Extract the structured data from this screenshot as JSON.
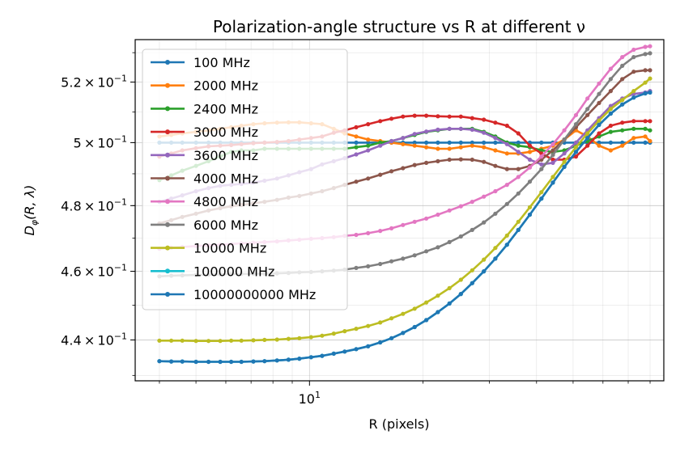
{
  "chart_data": {
    "type": "line",
    "title": "Polarization-angle structure vs R at different ν",
    "xlabel": "R (pixels)",
    "ylabel_main": "D",
    "ylabel_sub": "φ",
    "ylabel_args": "(R, λ)",
    "xscale": "log",
    "yscale": "log",
    "xlim": [
      3.45,
      87
    ],
    "ylim": [
      0.4285,
      0.5345
    ],
    "xtick_major": {
      "value": 10,
      "base": "10",
      "exp": "1"
    },
    "x_minor_ticks": [
      4,
      5,
      6,
      7,
      8,
      9,
      20,
      30,
      40,
      50,
      60,
      70,
      80
    ],
    "yticks": [
      {
        "value": 0.44,
        "mant": "4.4",
        "times": "×",
        "base": "10",
        "exp": "−1"
      },
      {
        "value": 0.46,
        "mant": "4.6",
        "times": "×",
        "base": "10",
        "exp": "−1"
      },
      {
        "value": 0.48,
        "mant": "4.8",
        "times": "×",
        "base": "10",
        "exp": "−1"
      },
      {
        "value": 0.5,
        "mant": "5",
        "times": "×",
        "base": "10",
        "exp": "−1"
      },
      {
        "value": 0.52,
        "mant": "5.2",
        "times": "×",
        "base": "10",
        "exp": "−1"
      }
    ],
    "grid": true,
    "legend_position": "upper-left",
    "x": [
      4.0,
      4.3,
      4.6,
      5.0,
      5.4,
      5.8,
      6.2,
      6.6,
      7.1,
      7.6,
      8.2,
      8.8,
      9.4,
      10.1,
      10.8,
      11.6,
      12.4,
      13.3,
      14.3,
      15.4,
      16.5,
      17.7,
      19.0,
      20.4,
      21.9,
      23.5,
      25.2,
      27.0,
      29.0,
      31.1,
      33.4,
      35.8,
      38.4,
      41.2,
      44.2,
      47.4,
      50.9,
      54.6,
      58.6,
      62.9,
      67.5,
      72.4,
      77.7,
      80.0
    ],
    "series": [
      {
        "name": "100 MHz",
        "color": "#1f77b4",
        "values": [
          0.5,
          0.5,
          0.5,
          0.5,
          0.5,
          0.5,
          0.5,
          0.5,
          0.5,
          0.5,
          0.5,
          0.5,
          0.5,
          0.5,
          0.5,
          0.5,
          0.5,
          0.5,
          0.5,
          0.5,
          0.5,
          0.5,
          0.5,
          0.5,
          0.5,
          0.5,
          0.5,
          0.5,
          0.5,
          0.5,
          0.5,
          0.5,
          0.5,
          0.5,
          0.5,
          0.5,
          0.5,
          0.5,
          0.5,
          0.5,
          0.5,
          0.5,
          0.5,
          0.5
        ]
      },
      {
        "name": "2000 MHz",
        "color": "#ff7f0e",
        "values": [
          0.502,
          0.5025,
          0.503,
          0.5035,
          0.504,
          0.5045,
          0.505,
          0.5055,
          0.506,
          0.5063,
          0.5065,
          0.5066,
          0.5066,
          0.5063,
          0.506,
          0.5045,
          0.503,
          0.502,
          0.501,
          0.5005,
          0.5,
          0.4995,
          0.499,
          0.4985,
          0.498,
          0.498,
          0.4985,
          0.499,
          0.4985,
          0.4975,
          0.4965,
          0.4965,
          0.497,
          0.498,
          0.499,
          0.501,
          0.504,
          0.502,
          0.499,
          0.4975,
          0.499,
          0.5015,
          0.502,
          0.5005
        ]
      },
      {
        "name": "2400 MHz",
        "color": "#2ca02c",
        "values": [
          0.488,
          0.4895,
          0.491,
          0.4925,
          0.494,
          0.4955,
          0.497,
          0.4975,
          0.4975,
          0.498,
          0.498,
          0.498,
          0.498,
          0.498,
          0.498,
          0.498,
          0.498,
          0.4985,
          0.499,
          0.5,
          0.5005,
          0.5015,
          0.5025,
          0.5035,
          0.504,
          0.5045,
          0.5045,
          0.5045,
          0.5035,
          0.502,
          0.5,
          0.499,
          0.4985,
          0.4975,
          0.497,
          0.4975,
          0.499,
          0.5005,
          0.502,
          0.5035,
          0.504,
          0.5045,
          0.5045,
          0.504
        ]
      },
      {
        "name": "3000 MHz",
        "color": "#d62728",
        "values": [
          0.4955,
          0.4965,
          0.4975,
          0.4982,
          0.4988,
          0.499,
          0.4992,
          0.4995,
          0.4998,
          0.5,
          0.5002,
          0.5005,
          0.501,
          0.5015,
          0.502,
          0.5032,
          0.504,
          0.505,
          0.506,
          0.507,
          0.5078,
          0.5085,
          0.5088,
          0.5088,
          0.5086,
          0.5085,
          0.5085,
          0.508,
          0.5075,
          0.5065,
          0.5055,
          0.503,
          0.499,
          0.4965,
          0.4945,
          0.4945,
          0.4955,
          0.499,
          0.503,
          0.5055,
          0.5065,
          0.507,
          0.507,
          0.507
        ]
      },
      {
        "name": "3600 MHz",
        "color": "#9467bd",
        "values": [
          0.4812,
          0.4822,
          0.4832,
          0.4845,
          0.4855,
          0.4862,
          0.4865,
          0.4868,
          0.4872,
          0.4878,
          0.4885,
          0.4895,
          0.4905,
          0.4915,
          0.493,
          0.494,
          0.495,
          0.4962,
          0.4975,
          0.499,
          0.5005,
          0.5015,
          0.5028,
          0.5036,
          0.5042,
          0.5045,
          0.5045,
          0.5042,
          0.5032,
          0.5015,
          0.4995,
          0.497,
          0.4945,
          0.493,
          0.4935,
          0.4965,
          0.5,
          0.504,
          0.508,
          0.512,
          0.5145,
          0.516,
          0.5165,
          0.517
        ]
      },
      {
        "name": "4000 MHz",
        "color": "#8c564b",
        "values": [
          0.4745,
          0.4755,
          0.4765,
          0.4775,
          0.4785,
          0.4792,
          0.4798,
          0.4802,
          0.4807,
          0.4812,
          0.4818,
          0.4825,
          0.483,
          0.4838,
          0.4845,
          0.4855,
          0.4865,
          0.4875,
          0.4885,
          0.4897,
          0.4908,
          0.4918,
          0.4928,
          0.4935,
          0.494,
          0.4945,
          0.4946,
          0.4945,
          0.4938,
          0.4925,
          0.4915,
          0.4915,
          0.4925,
          0.4945,
          0.4975,
          0.501,
          0.505,
          0.509,
          0.513,
          0.517,
          0.521,
          0.5235,
          0.524,
          0.524
        ]
      },
      {
        "name": "4800 MHz",
        "color": "#e377c2",
        "values": [
          0.4668,
          0.4671,
          0.4673,
          0.4676,
          0.4678,
          0.468,
          0.4682,
          0.4684,
          0.4686,
          0.4688,
          0.469,
          0.4693,
          0.4695,
          0.4698,
          0.47,
          0.4703,
          0.4707,
          0.471,
          0.4715,
          0.4722,
          0.473,
          0.474,
          0.475,
          0.476,
          0.4772,
          0.4785,
          0.4798,
          0.4812,
          0.4828,
          0.4845,
          0.4865,
          0.489,
          0.492,
          0.4955,
          0.4995,
          0.504,
          0.509,
          0.5145,
          0.5195,
          0.5245,
          0.5285,
          0.531,
          0.532,
          0.5322
        ]
      },
      {
        "name": "6000 MHz",
        "color": "#7f7f7f",
        "values": [
          0.4585,
          0.4587,
          0.4588,
          0.4589,
          0.459,
          0.4591,
          0.4592,
          0.4592,
          0.4593,
          0.4593,
          0.4594,
          0.4595,
          0.4597,
          0.4598,
          0.46,
          0.4602,
          0.4605,
          0.461,
          0.4615,
          0.4622,
          0.463,
          0.4638,
          0.4648,
          0.466,
          0.4672,
          0.4688,
          0.4705,
          0.4725,
          0.4748,
          0.4775,
          0.4805,
          0.4838,
          0.4875,
          0.4915,
          0.496,
          0.501,
          0.506,
          0.511,
          0.516,
          0.521,
          0.5255,
          0.5285,
          0.5295,
          0.5298
        ]
      },
      {
        "name": "10000 MHz",
        "color": "#bcbd22",
        "values": [
          0.4398,
          0.4398,
          0.4398,
          0.4397,
          0.4397,
          0.4397,
          0.4398,
          0.4398,
          0.4399,
          0.44,
          0.4401,
          0.4403,
          0.4405,
          0.4408,
          0.4412,
          0.4418,
          0.4425,
          0.4432,
          0.444,
          0.445,
          0.4462,
          0.4475,
          0.449,
          0.4508,
          0.4528,
          0.455,
          0.4575,
          0.4603,
          0.4635,
          0.467,
          0.4708,
          0.475,
          0.4795,
          0.4842,
          0.489,
          0.4938,
          0.4985,
          0.503,
          0.5072,
          0.511,
          0.514,
          0.517,
          0.5198,
          0.5212
        ]
      },
      {
        "name": "100000 MHz",
        "color": "#17becf",
        "values": [
          0.434,
          0.4339,
          0.4339,
          0.4338,
          0.4338,
          0.4338,
          0.4338,
          0.4338,
          0.4339,
          0.434,
          0.4342,
          0.4344,
          0.4347,
          0.4351,
          0.4355,
          0.4361,
          0.4367,
          0.4374,
          0.4382,
          0.4393,
          0.4405,
          0.442,
          0.4437,
          0.4457,
          0.448,
          0.4505,
          0.4533,
          0.4565,
          0.46,
          0.4638,
          0.468,
          0.4725,
          0.4772,
          0.4822,
          0.4872,
          0.4922,
          0.497,
          0.5015,
          0.5058,
          0.5095,
          0.5125,
          0.5148,
          0.5162,
          0.5165
        ]
      },
      {
        "name": "10000000000 MHz",
        "color": "#1f77b4",
        "values": [
          0.434,
          0.4339,
          0.4339,
          0.4338,
          0.4338,
          0.4338,
          0.4338,
          0.4338,
          0.4339,
          0.434,
          0.4342,
          0.4344,
          0.4347,
          0.4351,
          0.4355,
          0.4361,
          0.4367,
          0.4374,
          0.4382,
          0.4393,
          0.4405,
          0.442,
          0.4437,
          0.4457,
          0.448,
          0.4505,
          0.4533,
          0.4565,
          0.46,
          0.4638,
          0.468,
          0.4725,
          0.4772,
          0.4822,
          0.4872,
          0.4922,
          0.497,
          0.5015,
          0.5058,
          0.5095,
          0.5125,
          0.5148,
          0.5162,
          0.5165
        ]
      }
    ]
  }
}
